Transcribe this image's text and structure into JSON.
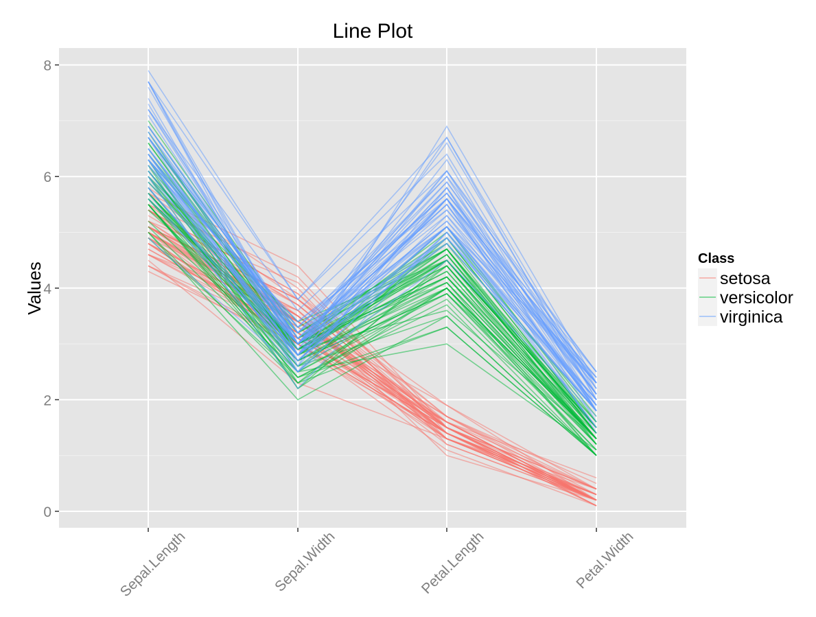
{
  "chart_data": {
    "type": "line",
    "title": "Line Plot",
    "xlabel": "",
    "ylabel": "Values",
    "categories": [
      "Sepal.Length",
      "Sepal.Width",
      "Petal.Length",
      "Petal.Width"
    ],
    "ylim": [
      -0.3,
      8.3
    ],
    "yticks": [
      0,
      2,
      4,
      6,
      8
    ],
    "grid": true,
    "legend": {
      "title": "Class",
      "position": "right"
    },
    "series": [
      {
        "name": "setosa",
        "color": "#F8766D",
        "lines": [
          [
            5.1,
            3.5,
            1.4,
            0.2
          ],
          [
            4.9,
            3.0,
            1.4,
            0.2
          ],
          [
            4.7,
            3.2,
            1.3,
            0.2
          ],
          [
            4.6,
            3.1,
            1.5,
            0.2
          ],
          [
            5.0,
            3.6,
            1.4,
            0.2
          ],
          [
            5.4,
            3.9,
            1.7,
            0.4
          ],
          [
            4.6,
            3.4,
            1.4,
            0.3
          ],
          [
            5.0,
            3.4,
            1.5,
            0.2
          ],
          [
            4.4,
            2.9,
            1.4,
            0.2
          ],
          [
            4.9,
            3.1,
            1.5,
            0.1
          ],
          [
            5.4,
            3.7,
            1.5,
            0.2
          ],
          [
            4.8,
            3.4,
            1.6,
            0.2
          ],
          [
            4.8,
            3.0,
            1.4,
            0.1
          ],
          [
            4.3,
            3.0,
            1.1,
            0.1
          ],
          [
            5.8,
            4.0,
            1.2,
            0.2
          ],
          [
            5.7,
            4.4,
            1.5,
            0.4
          ],
          [
            5.4,
            3.9,
            1.3,
            0.4
          ],
          [
            5.1,
            3.5,
            1.4,
            0.3
          ],
          [
            5.7,
            3.8,
            1.7,
            0.3
          ],
          [
            5.1,
            3.8,
            1.5,
            0.3
          ],
          [
            5.4,
            3.4,
            1.7,
            0.2
          ],
          [
            5.1,
            3.7,
            1.5,
            0.4
          ],
          [
            4.6,
            3.6,
            1.0,
            0.2
          ],
          [
            5.1,
            3.3,
            1.7,
            0.5
          ],
          [
            4.8,
            3.4,
            1.9,
            0.2
          ],
          [
            5.0,
            3.0,
            1.6,
            0.2
          ],
          [
            5.0,
            3.4,
            1.6,
            0.4
          ],
          [
            5.2,
            3.5,
            1.5,
            0.2
          ],
          [
            5.2,
            3.4,
            1.4,
            0.2
          ],
          [
            4.7,
            3.2,
            1.6,
            0.2
          ],
          [
            4.8,
            3.1,
            1.6,
            0.2
          ],
          [
            5.4,
            3.4,
            1.5,
            0.4
          ],
          [
            5.2,
            4.1,
            1.5,
            0.1
          ],
          [
            5.5,
            4.2,
            1.4,
            0.2
          ],
          [
            4.9,
            3.1,
            1.5,
            0.2
          ],
          [
            5.0,
            3.2,
            1.2,
            0.2
          ],
          [
            5.5,
            3.5,
            1.3,
            0.2
          ],
          [
            4.9,
            3.6,
            1.4,
            0.1
          ],
          [
            4.4,
            3.0,
            1.3,
            0.2
          ],
          [
            5.1,
            3.4,
            1.5,
            0.2
          ],
          [
            5.0,
            3.5,
            1.3,
            0.3
          ],
          [
            4.5,
            2.3,
            1.3,
            0.3
          ],
          [
            4.4,
            3.2,
            1.3,
            0.2
          ],
          [
            5.0,
            3.5,
            1.6,
            0.6
          ],
          [
            5.1,
            3.8,
            1.9,
            0.4
          ],
          [
            4.8,
            3.0,
            1.4,
            0.3
          ],
          [
            5.1,
            3.8,
            1.6,
            0.2
          ],
          [
            4.6,
            3.2,
            1.4,
            0.2
          ],
          [
            5.3,
            3.7,
            1.5,
            0.2
          ],
          [
            5.0,
            3.3,
            1.4,
            0.2
          ]
        ]
      },
      {
        "name": "versicolor",
        "color": "#00BA38",
        "lines": [
          [
            7.0,
            3.2,
            4.7,
            1.4
          ],
          [
            6.4,
            3.2,
            4.5,
            1.5
          ],
          [
            6.9,
            3.1,
            4.9,
            1.5
          ],
          [
            5.5,
            2.3,
            4.0,
            1.3
          ],
          [
            6.5,
            2.8,
            4.6,
            1.5
          ],
          [
            5.7,
            2.8,
            4.5,
            1.3
          ],
          [
            6.3,
            3.3,
            4.7,
            1.6
          ],
          [
            4.9,
            2.4,
            3.3,
            1.0
          ],
          [
            6.6,
            2.9,
            4.6,
            1.3
          ],
          [
            5.2,
            2.7,
            3.9,
            1.4
          ],
          [
            5.0,
            2.0,
            3.5,
            1.0
          ],
          [
            5.9,
            3.0,
            4.2,
            1.5
          ],
          [
            6.0,
            2.2,
            4.0,
            1.0
          ],
          [
            6.1,
            2.9,
            4.7,
            1.4
          ],
          [
            5.6,
            2.9,
            3.6,
            1.3
          ],
          [
            6.7,
            3.1,
            4.4,
            1.4
          ],
          [
            5.6,
            3.0,
            4.5,
            1.5
          ],
          [
            5.8,
            2.7,
            4.1,
            1.0
          ],
          [
            6.2,
            2.2,
            4.5,
            1.5
          ],
          [
            5.6,
            2.5,
            3.9,
            1.1
          ],
          [
            5.9,
            3.2,
            4.8,
            1.8
          ],
          [
            6.1,
            2.8,
            4.0,
            1.3
          ],
          [
            6.3,
            2.5,
            4.9,
            1.5
          ],
          [
            6.1,
            2.8,
            4.7,
            1.2
          ],
          [
            6.4,
            2.9,
            4.3,
            1.3
          ],
          [
            6.6,
            3.0,
            4.4,
            1.4
          ],
          [
            6.8,
            2.8,
            4.8,
            1.4
          ],
          [
            6.7,
            3.0,
            5.0,
            1.7
          ],
          [
            6.0,
            2.9,
            4.5,
            1.5
          ],
          [
            5.7,
            2.6,
            3.5,
            1.0
          ],
          [
            5.5,
            2.4,
            3.8,
            1.1
          ],
          [
            5.5,
            2.4,
            3.7,
            1.0
          ],
          [
            5.8,
            2.7,
            3.9,
            1.2
          ],
          [
            6.0,
            2.7,
            5.1,
            1.6
          ],
          [
            5.4,
            3.0,
            4.5,
            1.5
          ],
          [
            6.0,
            3.4,
            4.5,
            1.6
          ],
          [
            6.7,
            3.1,
            4.7,
            1.5
          ],
          [
            6.3,
            2.3,
            4.4,
            1.3
          ],
          [
            5.6,
            3.0,
            4.1,
            1.3
          ],
          [
            5.5,
            2.5,
            4.0,
            1.3
          ],
          [
            5.5,
            2.6,
            4.4,
            1.2
          ],
          [
            6.1,
            3.0,
            4.6,
            1.4
          ],
          [
            5.8,
            2.6,
            4.0,
            1.2
          ],
          [
            5.0,
            2.3,
            3.3,
            1.0
          ],
          [
            5.6,
            2.7,
            4.2,
            1.3
          ],
          [
            5.7,
            3.0,
            4.2,
            1.2
          ],
          [
            5.7,
            2.9,
            4.2,
            1.3
          ],
          [
            6.2,
            2.9,
            4.3,
            1.3
          ],
          [
            5.1,
            2.5,
            3.0,
            1.1
          ],
          [
            5.7,
            2.8,
            4.1,
            1.3
          ]
        ]
      },
      {
        "name": "virginica",
        "color": "#619CFF",
        "lines": [
          [
            6.3,
            3.3,
            6.0,
            2.5
          ],
          [
            5.8,
            2.7,
            5.1,
            1.9
          ],
          [
            7.1,
            3.0,
            5.9,
            2.1
          ],
          [
            6.3,
            2.9,
            5.6,
            1.8
          ],
          [
            6.5,
            3.0,
            5.8,
            2.2
          ],
          [
            7.6,
            3.0,
            6.6,
            2.1
          ],
          [
            4.9,
            2.5,
            4.5,
            1.7
          ],
          [
            7.3,
            2.9,
            6.3,
            1.8
          ],
          [
            6.7,
            2.5,
            5.8,
            1.8
          ],
          [
            7.2,
            3.6,
            6.1,
            2.5
          ],
          [
            6.5,
            3.2,
            5.1,
            2.0
          ],
          [
            6.4,
            2.7,
            5.3,
            1.9
          ],
          [
            6.8,
            3.0,
            5.5,
            2.1
          ],
          [
            5.7,
            2.5,
            5.0,
            2.0
          ],
          [
            5.8,
            2.8,
            5.1,
            2.4
          ],
          [
            6.4,
            3.2,
            5.3,
            2.3
          ],
          [
            6.5,
            3.0,
            5.5,
            1.8
          ],
          [
            7.7,
            3.8,
            6.7,
            2.2
          ],
          [
            7.7,
            2.6,
            6.9,
            2.3
          ],
          [
            6.0,
            2.2,
            5.0,
            1.5
          ],
          [
            6.9,
            3.2,
            5.7,
            2.3
          ],
          [
            5.6,
            2.8,
            4.9,
            2.0
          ],
          [
            7.7,
            2.8,
            6.7,
            2.0
          ],
          [
            6.3,
            2.7,
            4.9,
            1.8
          ],
          [
            6.7,
            3.3,
            5.7,
            2.1
          ],
          [
            7.2,
            3.2,
            6.0,
            1.8
          ],
          [
            6.2,
            2.8,
            4.8,
            1.8
          ],
          [
            6.1,
            3.0,
            4.9,
            1.8
          ],
          [
            6.4,
            2.8,
            5.6,
            2.1
          ],
          [
            7.2,
            3.0,
            5.8,
            1.6
          ],
          [
            7.4,
            2.8,
            6.1,
            1.9
          ],
          [
            7.9,
            3.8,
            6.4,
            2.0
          ],
          [
            6.4,
            2.8,
            5.6,
            2.2
          ],
          [
            6.3,
            2.8,
            5.1,
            1.5
          ],
          [
            6.1,
            2.6,
            5.6,
            1.4
          ],
          [
            7.7,
            3.0,
            6.1,
            2.3
          ],
          [
            6.3,
            3.4,
            5.6,
            2.4
          ],
          [
            6.4,
            3.1,
            5.5,
            1.8
          ],
          [
            6.0,
            3.0,
            4.8,
            1.8
          ],
          [
            6.9,
            3.1,
            5.4,
            2.1
          ],
          [
            6.7,
            3.1,
            5.6,
            2.4
          ],
          [
            6.9,
            3.1,
            5.1,
            2.3
          ],
          [
            5.8,
            2.7,
            5.1,
            1.9
          ],
          [
            6.8,
            3.2,
            5.9,
            2.3
          ],
          [
            6.7,
            3.3,
            5.7,
            2.5
          ],
          [
            6.7,
            3.0,
            5.2,
            2.3
          ],
          [
            6.3,
            2.5,
            5.0,
            1.9
          ],
          [
            6.5,
            3.0,
            5.2,
            2.0
          ],
          [
            6.2,
            3.4,
            5.4,
            2.3
          ],
          [
            5.9,
            3.0,
            5.1,
            1.8
          ]
        ]
      }
    ]
  }
}
